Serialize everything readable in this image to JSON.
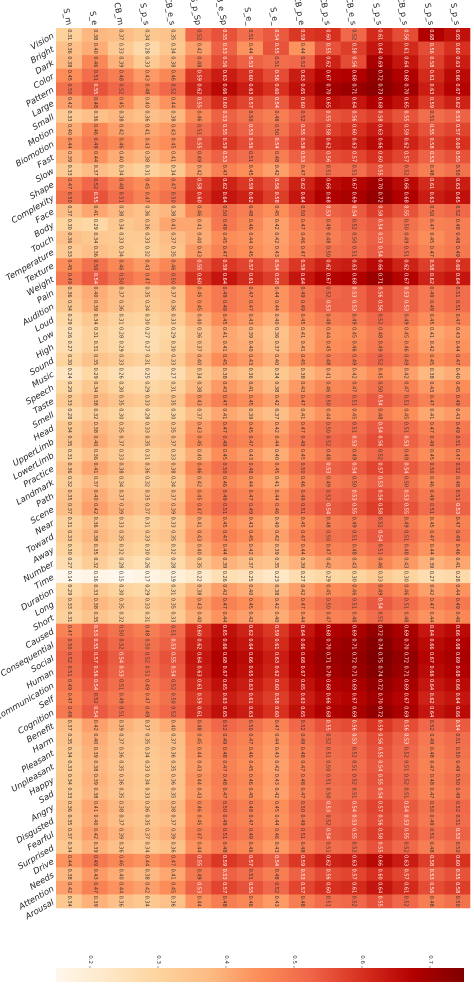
{
  "chart_data": {
    "type": "heatmap",
    "title": "",
    "xlabel": "",
    "ylabel": "",
    "columns": [
      "S_m",
      "S_e",
      "CB_m",
      "S_p_s",
      "CB_e_s",
      "S_p_Sp",
      "CB_e_Sp",
      "S_e_",
      "S_e_",
      "CB_p_e",
      "CB_p_s",
      "CB_e_s",
      "S_p_s",
      "CB_p_s",
      "S_p_s",
      "S_p_s"
    ],
    "rows": [
      "Vision",
      "Bright",
      "Dark",
      "Color",
      "Pattern",
      "Large",
      "Small",
      "Motion",
      "Biomotion",
      "Fast",
      "Slow",
      "Shape",
      "Complexity",
      "Face",
      "Body",
      "Touch",
      "Temperature",
      "Texture",
      "Weight",
      "Pain",
      "Audition",
      "Loud",
      "Low",
      "High",
      "Sound",
      "Music",
      "Speech",
      "Taste",
      "Smell",
      "Head",
      "UpperLimb",
      "LowerLimb",
      "Practice",
      "Landmark",
      "Path",
      "Scene",
      "Near",
      "Toward",
      "Away",
      "Number",
      "Time",
      "Duration",
      "Long",
      "Short",
      "Caused",
      "Consequential",
      "Social",
      "Human",
      "Communication",
      "Self",
      "Cognition",
      "Benefit",
      "Harm",
      "Pleasant",
      "Unpleasant",
      "Happy",
      "Sad",
      "Angry",
      "Disgusted",
      "Fearful",
      "Surprised",
      "Drive",
      "Needs",
      "Attention",
      "Arousal"
    ],
    "colorbar": {
      "ticks": [
        "0.2",
        "0.3",
        "0.4",
        "0.5",
        "0.6",
        "0.7"
      ],
      "colormap": "OrRd",
      "range": [
        0.15,
        0.75
      ]
    },
    "values": [
      [
        0.31,
        0.38,
        0.37,
        0.34,
        0.35,
        0.52,
        0.55,
        0.51,
        0.54,
        0.59,
        0.6,
        0.52,
        0.61,
        0.56,
        0.68,
        0.65
      ],
      [
        0.36,
        0.4,
        0.33,
        0.28,
        0.34,
        0.42,
        0.53,
        0.44,
        0.55,
        0.44,
        0.55,
        0.58,
        0.64,
        0.61,
        0.56,
        0.6
      ],
      [
        0.38,
        0.46,
        0.39,
        0.33,
        0.38,
        0.48,
        0.56,
        0.53,
        0.51,
        0.52,
        0.62,
        0.56,
        0.69,
        0.64,
        0.58,
        0.63
      ],
      [
        0.45,
        0.51,
        0.48,
        0.43,
        0.46,
        0.59,
        0.63,
        0.6,
        0.56,
        0.63,
        0.67,
        0.68,
        0.72,
        0.68,
        0.61,
        0.66
      ],
      [
        0.5,
        0.55,
        0.52,
        0.48,
        0.52,
        0.62,
        0.66,
        0.63,
        0.6,
        0.65,
        0.7,
        0.71,
        0.73,
        0.7,
        0.63,
        0.67
      ],
      [
        0.42,
        0.48,
        0.45,
        0.4,
        0.44,
        0.55,
        0.6,
        0.57,
        0.54,
        0.6,
        0.65,
        0.64,
        0.68,
        0.65,
        0.59,
        0.62
      ],
      [
        0.33,
        0.36,
        0.38,
        0.36,
        0.38,
        0.46,
        0.53,
        0.5,
        0.48,
        0.52,
        0.55,
        0.56,
        0.58,
        0.55,
        0.51,
        0.53
      ],
      [
        0.4,
        0.46,
        0.42,
        0.41,
        0.43,
        0.51,
        0.55,
        0.53,
        0.5,
        0.55,
        0.58,
        0.6,
        0.63,
        0.59,
        0.55,
        0.57
      ],
      [
        0.44,
        0.49,
        0.46,
        0.43,
        0.45,
        0.55,
        0.59,
        0.56,
        0.54,
        0.58,
        0.62,
        0.63,
        0.66,
        0.62,
        0.58,
        0.6
      ],
      [
        0.39,
        0.44,
        0.4,
        0.38,
        0.41,
        0.49,
        0.53,
        0.51,
        0.48,
        0.53,
        0.56,
        0.57,
        0.6,
        0.57,
        0.53,
        0.55
      ],
      [
        0.33,
        0.37,
        0.34,
        0.31,
        0.34,
        0.42,
        0.47,
        0.45,
        0.42,
        0.47,
        0.51,
        0.51,
        0.55,
        0.52,
        0.48,
        0.5
      ],
      [
        0.47,
        0.52,
        0.48,
        0.45,
        0.47,
        0.58,
        0.62,
        0.59,
        0.56,
        0.62,
        0.66,
        0.67,
        0.7,
        0.66,
        0.61,
        0.63
      ],
      [
        0.5,
        0.55,
        0.51,
        0.47,
        0.5,
        0.6,
        0.64,
        0.62,
        0.58,
        0.64,
        0.68,
        0.69,
        0.72,
        0.68,
        0.63,
        0.65
      ],
      [
        0.37,
        0.41,
        0.38,
        0.36,
        0.38,
        0.46,
        0.5,
        0.48,
        0.45,
        0.5,
        0.53,
        0.54,
        0.58,
        0.55,
        0.5,
        0.52
      ],
      [
        0.3,
        0.29,
        0.34,
        0.36,
        0.41,
        0.41,
        0.49,
        0.46,
        0.42,
        0.47,
        0.49,
        0.52,
        0.54,
        0.5,
        0.47,
        0.48
      ],
      [
        0.36,
        0.34,
        0.33,
        0.33,
        0.37,
        0.4,
        0.45,
        0.44,
        0.42,
        0.46,
        0.48,
        0.5,
        0.53,
        0.49,
        0.45,
        0.48
      ],
      [
        0.33,
        0.36,
        0.34,
        0.32,
        0.35,
        0.43,
        0.47,
        0.45,
        0.43,
        0.47,
        0.5,
        0.51,
        0.54,
        0.51,
        0.47,
        0.49
      ],
      [
        0.45,
        0.5,
        0.46,
        0.43,
        0.46,
        0.55,
        0.59,
        0.57,
        0.54,
        0.59,
        0.62,
        0.63,
        0.66,
        0.62,
        0.58,
        0.6
      ],
      [
        0.49,
        0.54,
        0.5,
        0.47,
        0.5,
        0.6,
        0.64,
        0.61,
        0.58,
        0.64,
        0.67,
        0.68,
        0.71,
        0.67,
        0.62,
        0.64
      ],
      [
        0.36,
        0.4,
        0.37,
        0.35,
        0.37,
        0.45,
        0.49,
        0.47,
        0.44,
        0.49,
        0.52,
        0.53,
        0.56,
        0.53,
        0.49,
        0.51
      ],
      [
        0.34,
        0.39,
        0.36,
        0.34,
        0.36,
        0.45,
        0.49,
        0.47,
        0.44,
        0.49,
        0.53,
        0.53,
        0.56,
        0.53,
        0.49,
        0.51
      ],
      [
        0.29,
        0.34,
        0.31,
        0.3,
        0.33,
        0.4,
        0.45,
        0.43,
        0.4,
        0.45,
        0.48,
        0.49,
        0.52,
        0.49,
        0.45,
        0.47
      ],
      [
        0.26,
        0.31,
        0.28,
        0.27,
        0.29,
        0.36,
        0.41,
        0.39,
        0.36,
        0.41,
        0.44,
        0.45,
        0.48,
        0.45,
        0.41,
        0.43
      ],
      [
        0.27,
        0.31,
        0.29,
        0.27,
        0.3,
        0.37,
        0.41,
        0.4,
        0.37,
        0.41,
        0.45,
        0.46,
        0.49,
        0.46,
        0.42,
        0.44
      ],
      [
        0.3,
        0.35,
        0.33,
        0.31,
        0.33,
        0.4,
        0.45,
        0.43,
        0.4,
        0.45,
        0.48,
        0.49,
        0.52,
        0.49,
        0.45,
        0.47
      ],
      [
        0.24,
        0.29,
        0.26,
        0.25,
        0.27,
        0.34,
        0.38,
        0.36,
        0.34,
        0.38,
        0.41,
        0.42,
        0.45,
        0.42,
        0.38,
        0.4
      ],
      [
        0.29,
        0.34,
        0.3,
        0.29,
        0.31,
        0.38,
        0.43,
        0.41,
        0.38,
        0.43,
        0.46,
        0.47,
        0.5,
        0.47,
        0.43,
        0.45
      ],
      [
        0.33,
        0.38,
        0.35,
        0.33,
        0.35,
        0.43,
        0.47,
        0.45,
        0.42,
        0.47,
        0.5,
        0.51,
        0.54,
        0.51,
        0.47,
        0.49
      ],
      [
        0.28,
        0.32,
        0.3,
        0.28,
        0.3,
        0.37,
        0.41,
        0.39,
        0.37,
        0.41,
        0.44,
        0.45,
        0.48,
        0.45,
        0.41,
        0.43
      ],
      [
        0.34,
        0.38,
        0.35,
        0.33,
        0.35,
        0.43,
        0.47,
        0.45,
        0.42,
        0.47,
        0.5,
        0.51,
        0.54,
        0.51,
        0.47,
        0.49
      ],
      [
        0.35,
        0.4,
        0.37,
        0.35,
        0.37,
        0.45,
        0.49,
        0.47,
        0.44,
        0.49,
        0.52,
        0.53,
        0.56,
        0.53,
        0.49,
        0.51
      ],
      [
        0.31,
        0.36,
        0.33,
        0.31,
        0.33,
        0.4,
        0.45,
        0.43,
        0.4,
        0.45,
        0.48,
        0.49,
        0.52,
        0.49,
        0.45,
        0.47
      ],
      [
        0.36,
        0.41,
        0.38,
        0.36,
        0.38,
        0.46,
        0.5,
        0.48,
        0.45,
        0.5,
        0.53,
        0.54,
        0.57,
        0.54,
        0.5,
        0.52
      ],
      [
        0.32,
        0.37,
        0.34,
        0.32,
        0.34,
        0.42,
        0.46,
        0.44,
        0.41,
        0.46,
        0.49,
        0.5,
        0.53,
        0.5,
        0.46,
        0.48
      ],
      [
        0.35,
        0.4,
        0.37,
        0.35,
        0.37,
        0.45,
        0.49,
        0.47,
        0.44,
        0.49,
        0.52,
        0.53,
        0.56,
        0.53,
        0.49,
        0.51
      ],
      [
        0.37,
        0.42,
        0.39,
        0.37,
        0.39,
        0.47,
        0.51,
        0.49,
        0.46,
        0.51,
        0.54,
        0.55,
        0.58,
        0.55,
        0.51,
        0.53
      ],
      [
        0.31,
        0.36,
        0.33,
        0.31,
        0.33,
        0.41,
        0.45,
        0.43,
        0.4,
        0.45,
        0.48,
        0.49,
        0.52,
        0.49,
        0.45,
        0.47
      ],
      [
        0.33,
        0.38,
        0.35,
        0.33,
        0.35,
        0.43,
        0.47,
        0.45,
        0.42,
        0.47,
        0.5,
        0.51,
        0.54,
        0.51,
        0.47,
        0.49
      ],
      [
        0.3,
        0.35,
        0.32,
        0.3,
        0.32,
        0.4,
        0.44,
        0.42,
        0.39,
        0.44,
        0.47,
        0.48,
        0.51,
        0.48,
        0.44,
        0.46
      ],
      [
        0.27,
        0.32,
        0.28,
        0.26,
        0.28,
        0.35,
        0.39,
        0.37,
        0.35,
        0.39,
        0.42,
        0.43,
        0.46,
        0.43,
        0.39,
        0.41
      ],
      [
        0.14,
        0.16,
        0.15,
        0.17,
        0.19,
        0.22,
        0.26,
        0.25,
        0.23,
        0.27,
        0.29,
        0.3,
        0.33,
        0.3,
        0.27,
        0.28
      ],
      [
        0.29,
        0.33,
        0.3,
        0.29,
        0.31,
        0.38,
        0.42,
        0.4,
        0.38,
        0.42,
        0.45,
        0.46,
        0.49,
        0.46,
        0.42,
        0.44
      ],
      [
        0.33,
        0.38,
        0.35,
        0.33,
        0.35,
        0.43,
        0.47,
        0.45,
        0.42,
        0.47,
        0.5,
        0.51,
        0.54,
        0.51,
        0.47,
        0.49
      ],
      [
        0.31,
        0.35,
        0.32,
        0.31,
        0.33,
        0.4,
        0.44,
        0.42,
        0.4,
        0.44,
        0.47,
        0.48,
        0.51,
        0.48,
        0.44,
        0.46
      ],
      [
        0.47,
        0.53,
        0.5,
        0.48,
        0.51,
        0.6,
        0.65,
        0.62,
        0.59,
        0.64,
        0.68,
        0.69,
        0.72,
        0.69,
        0.64,
        0.66
      ],
      [
        0.5,
        0.55,
        0.52,
        0.5,
        0.53,
        0.62,
        0.66,
        0.64,
        0.61,
        0.66,
        0.7,
        0.71,
        0.74,
        0.7,
        0.66,
        0.68
      ],
      [
        0.52,
        0.57,
        0.54,
        0.52,
        0.55,
        0.64,
        0.68,
        0.66,
        0.63,
        0.68,
        0.71,
        0.72,
        0.75,
        0.72,
        0.67,
        0.69
      ],
      [
        0.51,
        0.56,
        0.53,
        0.51,
        0.54,
        0.63,
        0.67,
        0.65,
        0.62,
        0.67,
        0.7,
        0.71,
        0.74,
        0.71,
        0.66,
        0.68
      ],
      [
        0.49,
        0.54,
        0.51,
        0.49,
        0.52,
        0.61,
        0.65,
        0.63,
        0.6,
        0.65,
        0.68,
        0.69,
        0.72,
        0.69,
        0.64,
        0.66
      ],
      [
        0.47,
        0.52,
        0.49,
        0.47,
        0.5,
        0.59,
        0.63,
        0.61,
        0.58,
        0.63,
        0.66,
        0.67,
        0.7,
        0.67,
        0.62,
        0.64
      ],
      [
        0.49,
        0.54,
        0.51,
        0.49,
        0.52,
        0.61,
        0.65,
        0.63,
        0.6,
        0.65,
        0.68,
        0.69,
        0.72,
        0.69,
        0.64,
        0.66
      ],
      [
        0.37,
        0.42,
        0.39,
        0.37,
        0.4,
        0.48,
        0.52,
        0.5,
        0.47,
        0.52,
        0.55,
        0.56,
        0.59,
        0.56,
        0.52,
        0.54
      ],
      [
        0.35,
        0.4,
        0.37,
        0.35,
        0.37,
        0.45,
        0.49,
        0.47,
        0.44,
        0.49,
        0.52,
        0.53,
        0.56,
        0.53,
        0.49,
        0.51
      ],
      [
        0.34,
        0.39,
        0.36,
        0.34,
        0.36,
        0.44,
        0.48,
        0.46,
        0.43,
        0.48,
        0.51,
        0.52,
        0.55,
        0.52,
        0.48,
        0.5
      ],
      [
        0.33,
        0.38,
        0.35,
        0.33,
        0.35,
        0.43,
        0.47,
        0.45,
        0.42,
        0.47,
        0.5,
        0.51,
        0.54,
        0.51,
        0.47,
        0.49
      ],
      [
        0.34,
        0.39,
        0.36,
        0.34,
        0.36,
        0.44,
        0.48,
        0.46,
        0.43,
        0.48,
        0.51,
        0.52,
        0.55,
        0.52,
        0.48,
        0.5
      ],
      [
        0.33,
        0.38,
        0.35,
        0.33,
        0.35,
        0.43,
        0.47,
        0.45,
        0.42,
        0.47,
        0.5,
        0.51,
        0.54,
        0.51,
        0.47,
        0.49
      ],
      [
        0.36,
        0.41,
        0.38,
        0.36,
        0.38,
        0.46,
        0.5,
        0.48,
        0.45,
        0.5,
        0.53,
        0.54,
        0.57,
        0.54,
        0.5,
        0.52
      ],
      [
        0.35,
        0.4,
        0.37,
        0.35,
        0.37,
        0.45,
        0.49,
        0.47,
        0.44,
        0.49,
        0.52,
        0.53,
        0.56,
        0.53,
        0.49,
        0.51
      ],
      [
        0.37,
        0.42,
        0.39,
        0.37,
        0.39,
        0.47,
        0.51,
        0.49,
        0.46,
        0.51,
        0.54,
        0.55,
        0.58,
        0.55,
        0.51,
        0.53
      ],
      [
        0.34,
        0.39,
        0.36,
        0.34,
        0.36,
        0.44,
        0.48,
        0.46,
        0.43,
        0.48,
        0.51,
        0.52,
        0.55,
        0.52,
        0.48,
        0.5
      ],
      [
        0.44,
        0.49,
        0.46,
        0.44,
        0.47,
        0.55,
        0.59,
        0.57,
        0.54,
        0.59,
        0.62,
        0.63,
        0.66,
        0.63,
        0.58,
        0.6
      ],
      [
        0.38,
        0.43,
        0.4,
        0.38,
        0.41,
        0.49,
        0.53,
        0.51,
        0.48,
        0.53,
        0.56,
        0.57,
        0.6,
        0.57,
        0.53,
        0.55
      ],
      [
        0.42,
        0.47,
        0.44,
        0.42,
        0.45,
        0.53,
        0.57,
        0.55,
        0.52,
        0.57,
        0.6,
        0.61,
        0.64,
        0.61,
        0.56,
        0.58
      ],
      [
        0.34,
        0.39,
        0.36,
        0.34,
        0.36,
        0.44,
        0.48,
        0.46,
        0.43,
        0.48,
        0.51,
        0.52,
        0.55,
        0.52,
        0.48,
        0.5
      ]
    ]
  }
}
